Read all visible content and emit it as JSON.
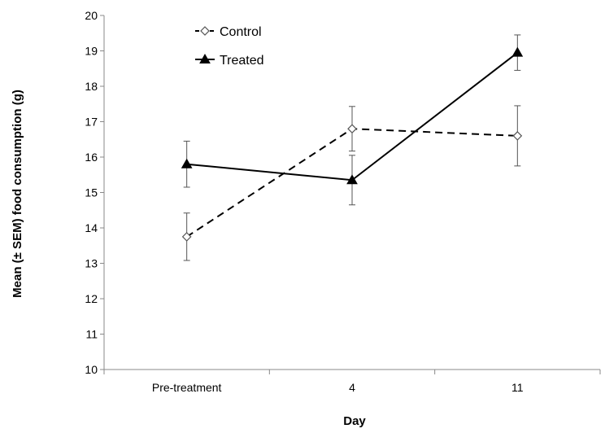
{
  "chart_data": {
    "type": "line",
    "title": "",
    "xlabel": "Day",
    "ylabel": "Mean (± SEM) food consumption (g)",
    "categories": [
      "Pre-treatment",
      "4",
      "11"
    ],
    "ylim": [
      10,
      20
    ],
    "yticks": [
      10,
      11,
      12,
      13,
      14,
      15,
      16,
      17,
      18,
      19,
      20
    ],
    "grid": false,
    "legend": "top-left",
    "series": [
      {
        "name": "Control",
        "values": [
          13.75,
          16.8,
          16.6
        ],
        "sem": [
          0.67,
          0.63,
          0.85
        ],
        "line_style": "dashed",
        "marker": "open-diamond",
        "color": "#000000"
      },
      {
        "name": "Treated",
        "values": [
          15.8,
          15.35,
          18.95
        ],
        "sem": [
          0.65,
          0.7,
          0.5
        ],
        "line_style": "solid",
        "marker": "filled-triangle",
        "color": "#000000"
      }
    ]
  }
}
